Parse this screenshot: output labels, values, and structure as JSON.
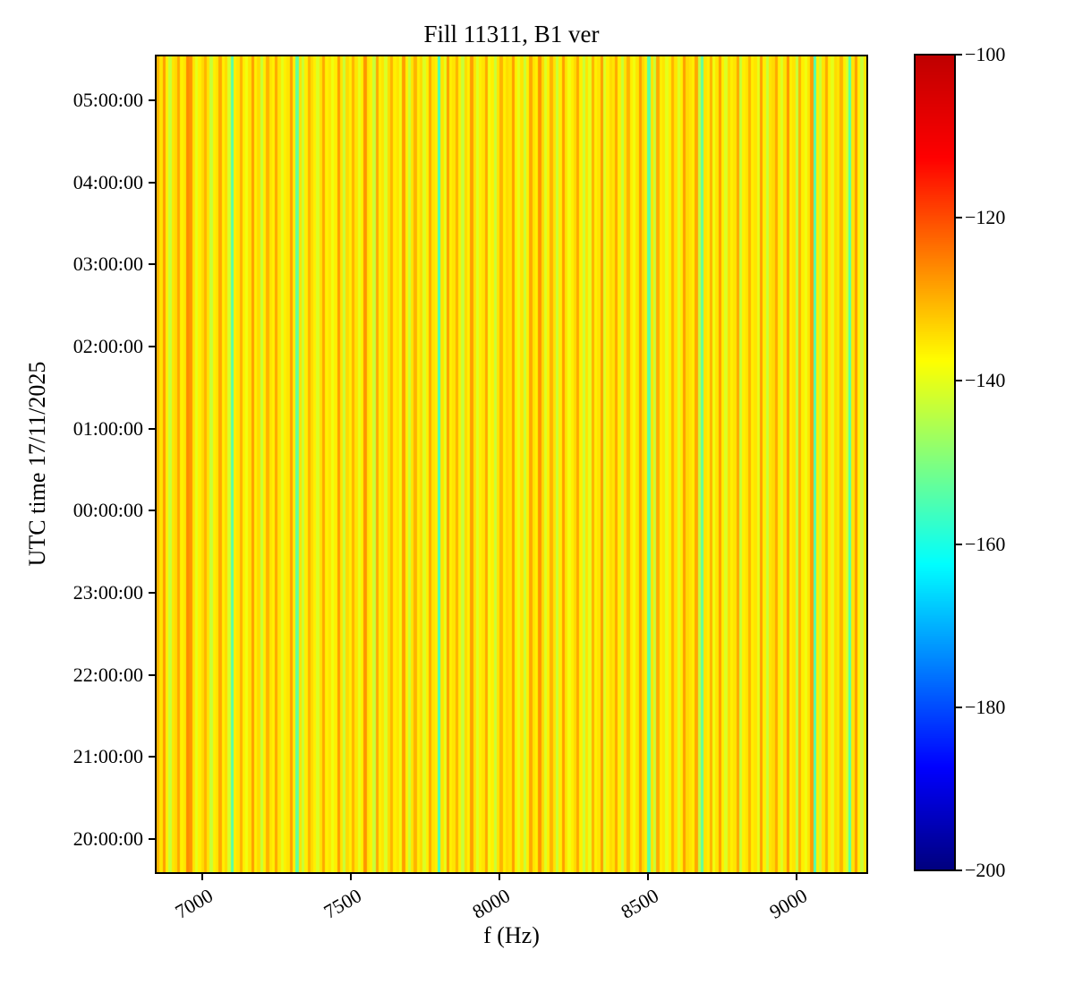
{
  "chart_data": {
    "type": "heatmap",
    "title": "Fill 11311, B1 ver",
    "xlabel": "f (Hz)",
    "ylabel": "UTC time 17/11/2025",
    "grid": false,
    "xlim_hz": [
      6840,
      9240
    ],
    "x_ticks_hz": [
      7000,
      7500,
      8000,
      8500,
      9000
    ],
    "y_ticks": [
      {
        "label": "05:00:00",
        "hour": 29
      },
      {
        "label": "04:00:00",
        "hour": 28
      },
      {
        "label": "03:00:00",
        "hour": 27
      },
      {
        "label": "02:00:00",
        "hour": 26
      },
      {
        "label": "01:00:00",
        "hour": 25
      },
      {
        "label": "00:00:00",
        "hour": 24
      },
      {
        "label": "23:00:00",
        "hour": 23
      },
      {
        "label": "22:00:00",
        "hour": 22
      },
      {
        "label": "21:00:00",
        "hour": 21
      },
      {
        "label": "20:00:00",
        "hour": 20
      }
    ],
    "ylim_hours": [
      19.575,
      29.556
    ],
    "colorbar": {
      "colormap": "jet",
      "vmin": -200,
      "vmax": -100,
      "ticks": [
        -100,
        -120,
        -140,
        -160,
        -180,
        -200
      ],
      "position": "right"
    },
    "freq_bin_hz": 10,
    "freq_start_hz": 6840,
    "spectrum_db": [
      -130,
      -135,
      -128,
      -136,
      -143,
      -135,
      -134,
      -129,
      -136,
      -135,
      -126,
      -127,
      -135,
      -140,
      -136,
      -134,
      -130,
      -135,
      -143,
      -136,
      -135,
      -129,
      -136,
      -134,
      -141,
      -154,
      -136,
      -135,
      -130,
      -136,
      -139,
      -135,
      -128,
      -136,
      -134,
      -143,
      -136,
      -130,
      -135,
      -136,
      -129,
      -135,
      -140,
      -136,
      -135,
      -128,
      -136,
      -153,
      -135,
      -143,
      -136,
      -130,
      -134,
      -136,
      -141,
      -135,
      -129,
      -136,
      -135,
      -139,
      -136,
      -128,
      -135,
      -143,
      -134,
      -136,
      -130,
      -135,
      -140,
      -136,
      -127,
      -135,
      -136,
      -143,
      -129,
      -136,
      -135,
      -141,
      -134,
      -130,
      -136,
      -135,
      -139,
      -128,
      -136,
      -143,
      -135,
      -130,
      -136,
      -134,
      -141,
      -136,
      -129,
      -135,
      -136,
      -156,
      -135,
      -140,
      -128,
      -136,
      -135,
      -130,
      -136,
      -143,
      -134,
      -136,
      -128,
      -135,
      -141,
      -136,
      -135,
      -129,
      -139,
      -136,
      -143,
      -135,
      -130,
      -136,
      -134,
      -135,
      -128,
      -136,
      -140,
      -135,
      -143,
      -136,
      -129,
      -135,
      -136,
      -127,
      -134,
      -141,
      -136,
      -130,
      -135,
      -143,
      -136,
      -128,
      -135,
      -139,
      -136,
      -134,
      -129,
      -136,
      -143,
      -135,
      -140,
      -130,
      -136,
      -135,
      -128,
      -141,
      -136,
      -134,
      -135,
      -129,
      -136,
      -143,
      -135,
      -130,
      -136,
      -139,
      -135,
      -128,
      -134,
      -136,
      -154,
      -135,
      -143,
      -129,
      -136,
      -135,
      -140,
      -136,
      -130,
      -135,
      -141,
      -136,
      -128,
      -134,
      -135,
      -136,
      -129,
      -143,
      -153,
      -135,
      -136,
      -130,
      -139,
      -135,
      -128,
      -136,
      -141,
      -134,
      -136,
      -135,
      -129,
      -143,
      -136,
      -135,
      -130,
      -136,
      -135,
      -140,
      -128,
      -136,
      -143,
      -135,
      -134,
      -129,
      -136,
      -141,
      -135,
      -127,
      -136,
      -135,
      -143,
      -130,
      -136,
      -139,
      -135,
      -128,
      -155,
      -136,
      -143,
      -135,
      -129,
      -136,
      -140,
      -134,
      -135,
      -130,
      -136,
      -141,
      -154,
      -135,
      -128,
      -136,
      -143,
      -135
    ]
  }
}
